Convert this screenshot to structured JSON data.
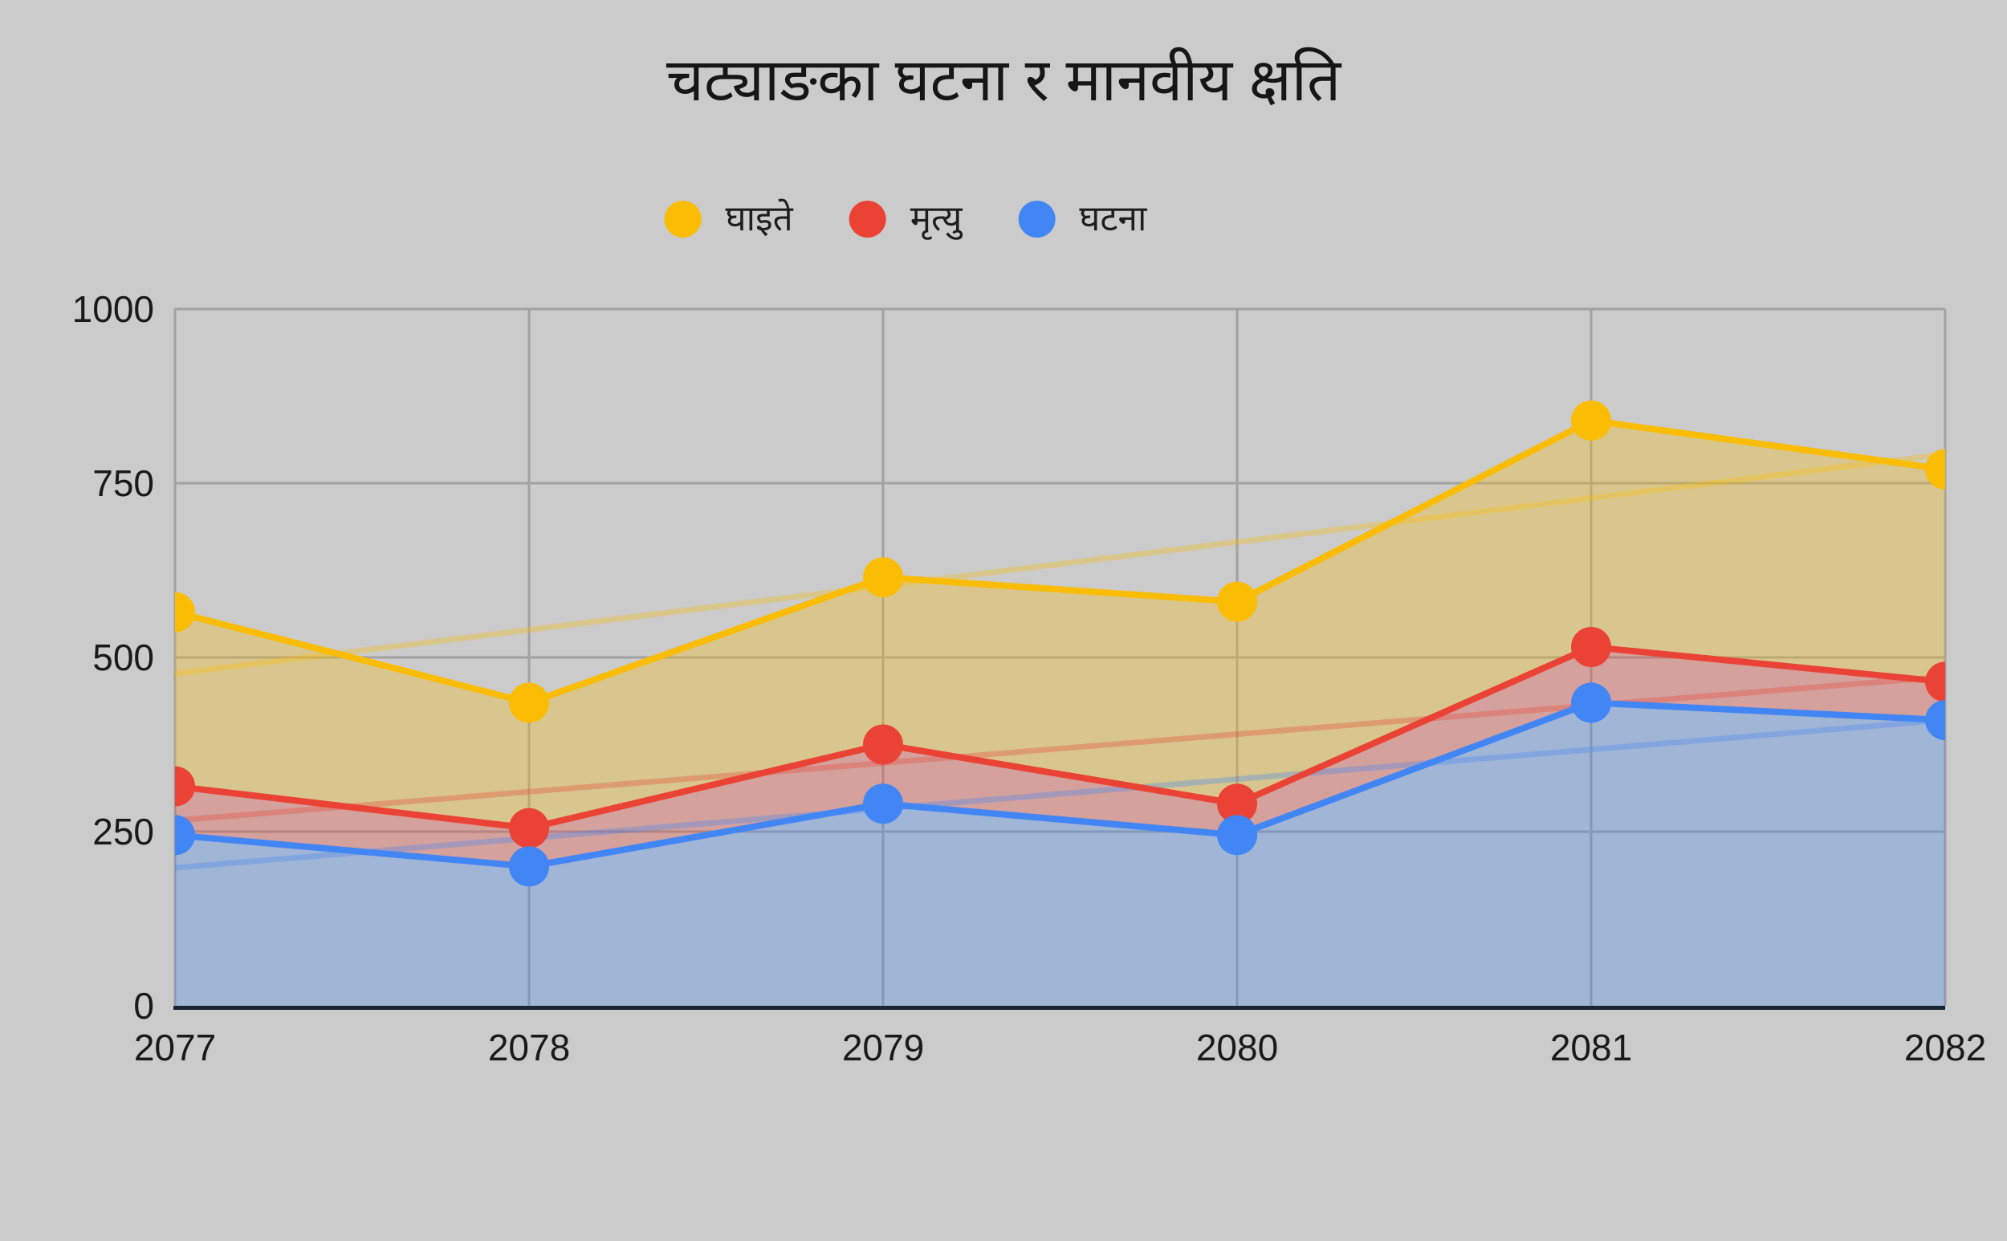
{
  "title": "चट्याङका घटना र मानवीय क्षति",
  "colors": {
    "background": "#CBCBCB",
    "gridline": "#A1A1A1",
    "axis_line": "#1B2433",
    "tick_text": "#1A1A1A",
    "series_yellow": "#FBBC04",
    "series_red": "#EA4335",
    "series_blue": "#4285F4"
  },
  "chart_data": {
    "type": "line",
    "title": "चट्याङका घटना र मानवीय क्षति",
    "categories": [
      "2077",
      "2078",
      "2079",
      "2080",
      "2081",
      "2082"
    ],
    "series": [
      {
        "name": "घाइते",
        "color": "#FBBC04",
        "values": [
          565,
          435,
          615,
          580,
          840,
          770
        ],
        "fill_to": "next"
      },
      {
        "name": "मृत्यु",
        "color": "#EA4335",
        "values": [
          315,
          255,
          375,
          290,
          515,
          465
        ],
        "fill_to": "next"
      },
      {
        "name": "घटना",
        "color": "#4285F4",
        "values": [
          245,
          200,
          290,
          245,
          435,
          410
        ],
        "fill_to": "baseline"
      }
    ],
    "trendlines": true,
    "xlabel": "",
    "ylabel": "",
    "ylim": [
      0,
      1000
    ],
    "yticks": [
      0,
      250,
      500,
      750,
      1000
    ],
    "grid": true,
    "legend_position": "top",
    "area_opacity": 0.3,
    "trend_opacity": 0.33
  }
}
